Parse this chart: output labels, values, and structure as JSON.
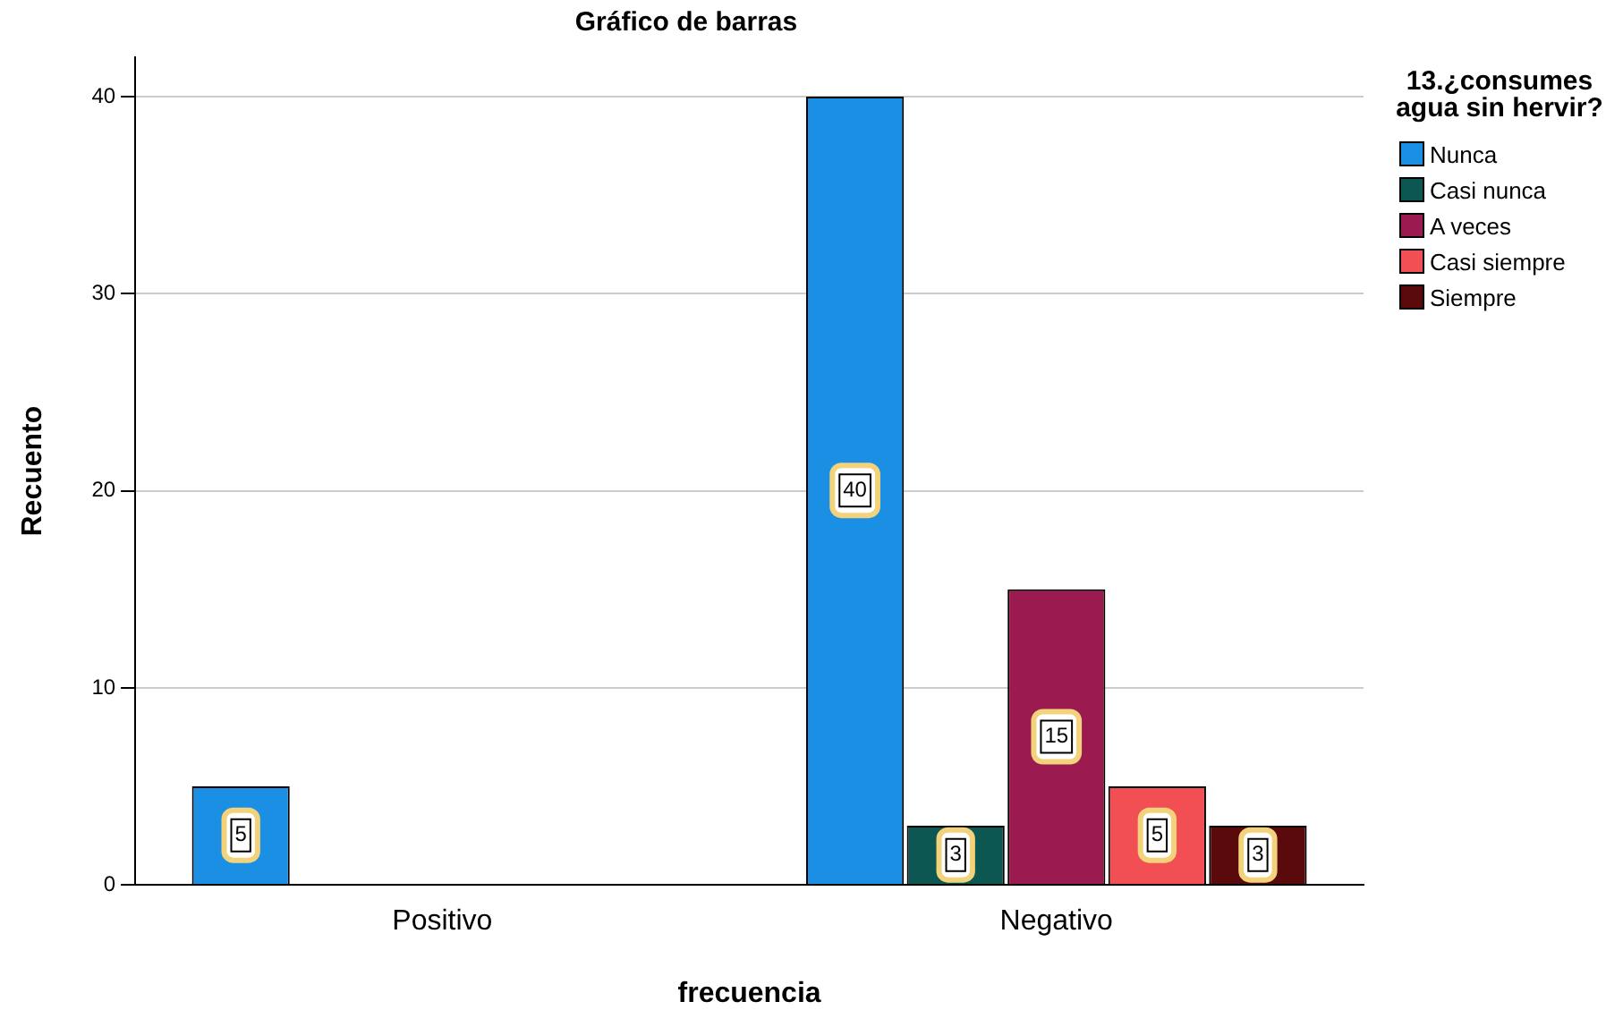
{
  "chart_data": {
    "type": "bar",
    "title": "Gráfico de barras",
    "xlabel": "frecuencia",
    "ylabel": "Recuento",
    "legend_title": "13.¿consumes agua sin hervir?",
    "categories": [
      "Positivo",
      "Negativo"
    ],
    "series": [
      {
        "name": "Nunca",
        "color": "#1a8fe3",
        "values": [
          5,
          40
        ]
      },
      {
        "name": "Casi nunca",
        "color": "#0c5751",
        "values": [
          null,
          3
        ]
      },
      {
        "name": "A veces",
        "color": "#9b1a4f",
        "values": [
          null,
          15
        ]
      },
      {
        "name": "Casi siempre",
        "color": "#f24f55",
        "values": [
          null,
          5
        ]
      },
      {
        "name": "Siempre",
        "color": "#5a0a0a",
        "values": [
          null,
          3
        ]
      }
    ],
    "ylim": [
      0,
      42
    ],
    "yticks": [
      0,
      10,
      20,
      30,
      40
    ],
    "grid": "y",
    "legend": "top right",
    "data_labels": true
  }
}
